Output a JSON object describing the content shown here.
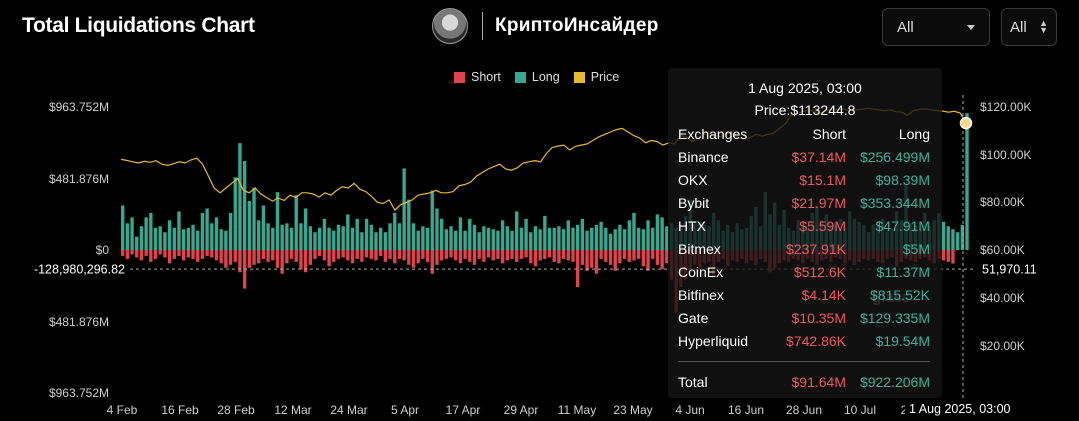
{
  "header": {
    "title": "Total Liquidations Chart",
    "brand_name": "КриптоИнсайдер",
    "select_range": "All",
    "select_unit": "All"
  },
  "legend": [
    {
      "label": "Short",
      "color": "#e0434c"
    },
    {
      "label": "Long",
      "color": "#36a890"
    },
    {
      "label": "Price",
      "color": "#e8b92a"
    }
  ],
  "tooltip": {
    "date": "1 Aug 2025, 03:00",
    "price": "Price:$113244.8",
    "headers": [
      "Exchanges",
      "Short",
      "Long"
    ],
    "rows": [
      {
        "exchange": "Binance",
        "short": "$37.14M",
        "long": "$256.499M"
      },
      {
        "exchange": "OKX",
        "short": "$15.1M",
        "long": "$98.39M"
      },
      {
        "exchange": "Bybit",
        "short": "$21.97M",
        "long": "$353.344M"
      },
      {
        "exchange": "HTX",
        "short": "$5.59M",
        "long": "$47.91M"
      },
      {
        "exchange": "Bitmex",
        "short": "$237.91K",
        "long": "$5M"
      },
      {
        "exchange": "CoinEx",
        "short": "$512.6K",
        "long": "$11.37M"
      },
      {
        "exchange": "Bitfinex",
        "short": "$4.14K",
        "long": "$815.52K"
      },
      {
        "exchange": "Gate",
        "short": "$10.35M",
        "long": "$129.335M"
      },
      {
        "exchange": "Hyperliquid",
        "short": "$742.86K",
        "long": "$19.54M"
      }
    ],
    "total": {
      "label": "Total",
      "short": "$91.64M",
      "long": "$922.206M"
    }
  },
  "watermark": "glass",
  "crosshair": {
    "x_label": "1 Aug 2025, 03:00",
    "y_left_label": "-128,980,296.82",
    "y_right_label": "51,970.11"
  },
  "chart_data": {
    "type": "bar",
    "title": "Total Liquidations Chart",
    "left_axis": {
      "ticks": [
        "$963.752M",
        "$481.876M",
        "$0",
        "$481.876M",
        "$963.752M"
      ],
      "range_musd": [
        -963.752,
        963.752
      ]
    },
    "right_axis": {
      "ticks": [
        "$120.00K",
        "$100.00K",
        "$80.00K",
        "$60.00K",
        "$40.00K",
        "$20.00K"
      ],
      "range_usd": [
        0,
        122000
      ]
    },
    "x_tick_labels": [
      "4 Feb",
      "16 Feb",
      "28 Feb",
      "12 Mar",
      "24 Mar",
      "5 Apr",
      "17 Apr",
      "29 Apr",
      "11 May",
      "23 May",
      "4 Jun",
      "16 Jun",
      "28 Jun",
      "10 Jul",
      "2"
    ],
    "grid": false,
    "legend_position": "top-center",
    "series": [
      {
        "name": "Long",
        "color": "#36a890",
        "values_musd": [
          300,
          180,
          220,
          90,
          160,
          220,
          250,
          150,
          160,
          120,
          200,
          150,
          260,
          140,
          150,
          170,
          130,
          250,
          280,
          180,
          220,
          140,
          130,
          250,
          490,
          720,
          600,
          330,
          420,
          200,
          300,
          180,
          150,
          390,
          170,
          180,
          150,
          370,
          180,
          280,
          160,
          120,
          150,
          210,
          150,
          130,
          170,
          160,
          240,
          150,
          210,
          120,
          210,
          170,
          120,
          150,
          120,
          180,
          250,
          180,
          550,
          340,
          180,
          130,
          160,
          150,
          400,
          280,
          210,
          140,
          160,
          130,
          220,
          130,
          210,
          170,
          120,
          160,
          150,
          140,
          130,
          200,
          160,
          130,
          260,
          150,
          210,
          120,
          160,
          140,
          230,
          150,
          150,
          160,
          140,
          200,
          150,
          170,
          210,
          130,
          150,
          170,
          190,
          150,
          110,
          140,
          170,
          140,
          200,
          250,
          150,
          140,
          200,
          150,
          240,
          220,
          160,
          180,
          150,
          170,
          230,
          340,
          180,
          190,
          170,
          160,
          250,
          200,
          130,
          170,
          120,
          180,
          140,
          150,
          230,
          290,
          160,
          390,
          240,
          320,
          170,
          270,
          150,
          130,
          200,
          160,
          170,
          250,
          300,
          200,
          240,
          170,
          180,
          210,
          150,
          260,
          210,
          190,
          170,
          120,
          170,
          180,
          210,
          130,
          140,
          260,
          200,
          440,
          180,
          170,
          130,
          250,
          160,
          200,
          250,
          190,
          160,
          140,
          120,
          170,
          922
        ]
      },
      {
        "name": "Short",
        "color": "#e0434c",
        "values_musd": [
          -40,
          -60,
          -30,
          -50,
          -70,
          -40,
          -80,
          -60,
          -30,
          -50,
          -90,
          -60,
          -40,
          -70,
          -50,
          -60,
          -80,
          -60,
          -40,
          -50,
          -70,
          -90,
          -120,
          -100,
          -80,
          -150,
          -260,
          -120,
          -100,
          -90,
          -60,
          -80,
          -70,
          -120,
          -160,
          -90,
          -60,
          -80,
          -130,
          -150,
          -100,
          -60,
          -40,
          -70,
          -110,
          -80,
          -60,
          -50,
          -70,
          -90,
          -60,
          -80,
          -50,
          -60,
          -70,
          -40,
          -80,
          -60,
          -90,
          -60,
          -70,
          -100,
          -120,
          -90,
          -60,
          -80,
          -160,
          -100,
          -70,
          -60,
          -50,
          -70,
          -90,
          -60,
          -80,
          -100,
          -60,
          -80,
          -50,
          -70,
          -60,
          -90,
          -70,
          -60,
          -80,
          -60,
          -50,
          -90,
          -110,
          -70,
          -60,
          -50,
          -80,
          -90,
          -60,
          -70,
          -80,
          -250,
          -100,
          -140,
          -120,
          -160,
          -60,
          -80,
          -100,
          -140,
          -90,
          -60,
          -80,
          -70,
          -60,
          -110,
          -140,
          -60,
          -100,
          -130,
          -90,
          -200,
          -420,
          -250,
          -200,
          -150,
          -100,
          -130,
          -90,
          -80,
          -180,
          -80,
          -60,
          -110,
          -70,
          -80,
          -60,
          -90,
          -70,
          -100,
          -60,
          -80,
          -150,
          -120,
          -90,
          -70,
          -80,
          -60,
          -70,
          -90,
          -60,
          -80,
          -100,
          -70,
          -60,
          -80,
          -50,
          -60,
          -90,
          -70,
          -100,
          -80,
          -60,
          -70,
          -60,
          -80,
          -90,
          -60,
          -50,
          -110,
          -80,
          -60,
          -70,
          -80,
          -60,
          -50,
          -70,
          -90,
          -60,
          -70,
          -80,
          -91.64
        ]
      }
    ],
    "price_series": {
      "name": "Price",
      "color": "#e8b92a",
      "values_usd": [
        98000,
        97600,
        97000,
        96500,
        97200,
        96800,
        97500,
        96000,
        95500,
        96200,
        97000,
        96500,
        97800,
        98500,
        96000,
        91000,
        86000,
        84000,
        86000,
        88000,
        90000,
        85000,
        84000,
        86000,
        83500,
        82000,
        80500,
        81800,
        80800,
        83000,
        82000,
        84000,
        84000,
        83500,
        82200,
        84000,
        83000,
        85000,
        86500,
        86000,
        88000,
        85500,
        84500,
        82500,
        80000,
        79500,
        81000,
        76800,
        79000,
        80000,
        81000,
        83000,
        83500,
        84000,
        85000,
        84000,
        84000,
        84500,
        87000,
        87500,
        88500,
        91000,
        92500,
        94000,
        95000,
        96000,
        94000,
        93500,
        94500,
        96500,
        97000,
        97500,
        97000,
        100500,
        103000,
        103600,
        104000,
        102000,
        103500,
        104000,
        104500,
        106000,
        107500,
        108500,
        109500,
        110500,
        111000,
        109500,
        108000,
        107000,
        105000,
        106000,
        105500,
        104000,
        105000,
        104500,
        108000,
        107500,
        105500,
        107000,
        108500,
        109000,
        108000,
        107500,
        109000,
        108500,
        107000,
        106500,
        107200,
        108500,
        107800,
        108500,
        109000,
        111000,
        113000,
        116500,
        117500,
        118000,
        119000,
        118000,
        117500,
        118500,
        119000,
        119000,
        119200,
        118500,
        118800,
        119000,
        119500,
        119200,
        118800,
        118500,
        118800,
        118000,
        117800,
        116500,
        118500,
        119000,
        119200,
        118800,
        118500,
        118300,
        117800,
        118200,
        117500,
        113244.8
      ]
    }
  }
}
